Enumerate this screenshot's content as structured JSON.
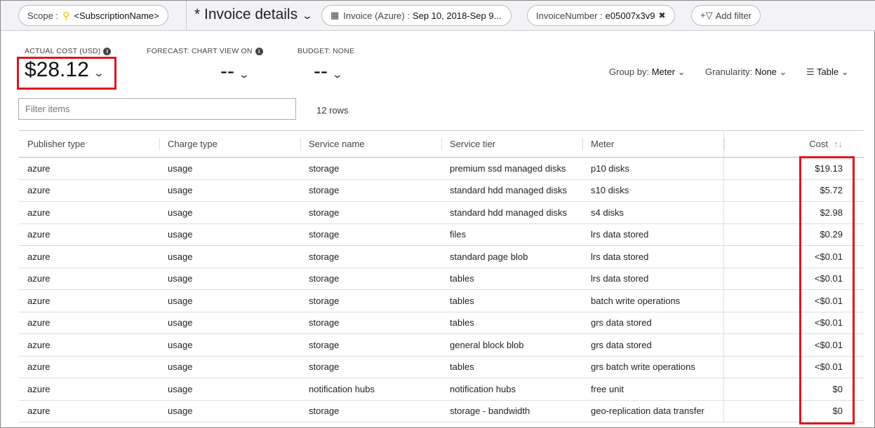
{
  "header": {
    "scope_label": "Scope :",
    "scope_value": "<SubscriptionName>",
    "view_title": "* Invoice details",
    "date_label": "Invoice (Azure) :",
    "date_value": "Sep 10, 2018-Sep 9...",
    "filter_label": "InvoiceNumber :",
    "filter_value": "e05007x3v9",
    "add_filter": "Add filter"
  },
  "kpis": [
    {
      "label": "ACTUAL COST (USD)",
      "value": "$28.12"
    },
    {
      "label": "FORECAST: CHART VIEW ON",
      "value": "--"
    },
    {
      "label": "BUDGET: NONE",
      "value": "--"
    }
  ],
  "controls": {
    "group_by_label": "Group by:",
    "group_by_value": "Meter",
    "granularity_label": "Granularity:",
    "granularity_value": "None",
    "view": "Table"
  },
  "filter": {
    "placeholder": "Filter items"
  },
  "row_count": "12 rows",
  "table": {
    "columns": [
      "Publisher type",
      "Charge type",
      "Service name",
      "Service tier",
      "Meter",
      "Cost"
    ],
    "rows": [
      [
        "azure",
        "usage",
        "storage",
        "premium ssd managed disks",
        "p10 disks",
        "$19.13"
      ],
      [
        "azure",
        "usage",
        "storage",
        "standard hdd managed disks",
        "s10 disks",
        "$5.72"
      ],
      [
        "azure",
        "usage",
        "storage",
        "standard hdd managed disks",
        "s4 disks",
        "$2.98"
      ],
      [
        "azure",
        "usage",
        "storage",
        "files",
        "lrs data stored",
        "$0.29"
      ],
      [
        "azure",
        "usage",
        "storage",
        "standard page blob",
        "lrs data stored",
        "<$0.01"
      ],
      [
        "azure",
        "usage",
        "storage",
        "tables",
        "lrs data stored",
        "<$0.01"
      ],
      [
        "azure",
        "usage",
        "storage",
        "tables",
        "batch write operations",
        "<$0.01"
      ],
      [
        "azure",
        "usage",
        "storage",
        "tables",
        "grs data stored",
        "<$0.01"
      ],
      [
        "azure",
        "usage",
        "storage",
        "general block blob",
        "grs data stored",
        "<$0.01"
      ],
      [
        "azure",
        "usage",
        "storage",
        "tables",
        "grs batch write operations",
        "<$0.01"
      ],
      [
        "azure",
        "usage",
        "notification hubs",
        "notification hubs",
        "free unit",
        "$0"
      ],
      [
        "azure",
        "usage",
        "storage",
        "storage - bandwidth",
        "geo-replication data transfer",
        "$0"
      ]
    ]
  },
  "colors": {
    "highlight": "#e0161e",
    "key": "#f2c200"
  }
}
